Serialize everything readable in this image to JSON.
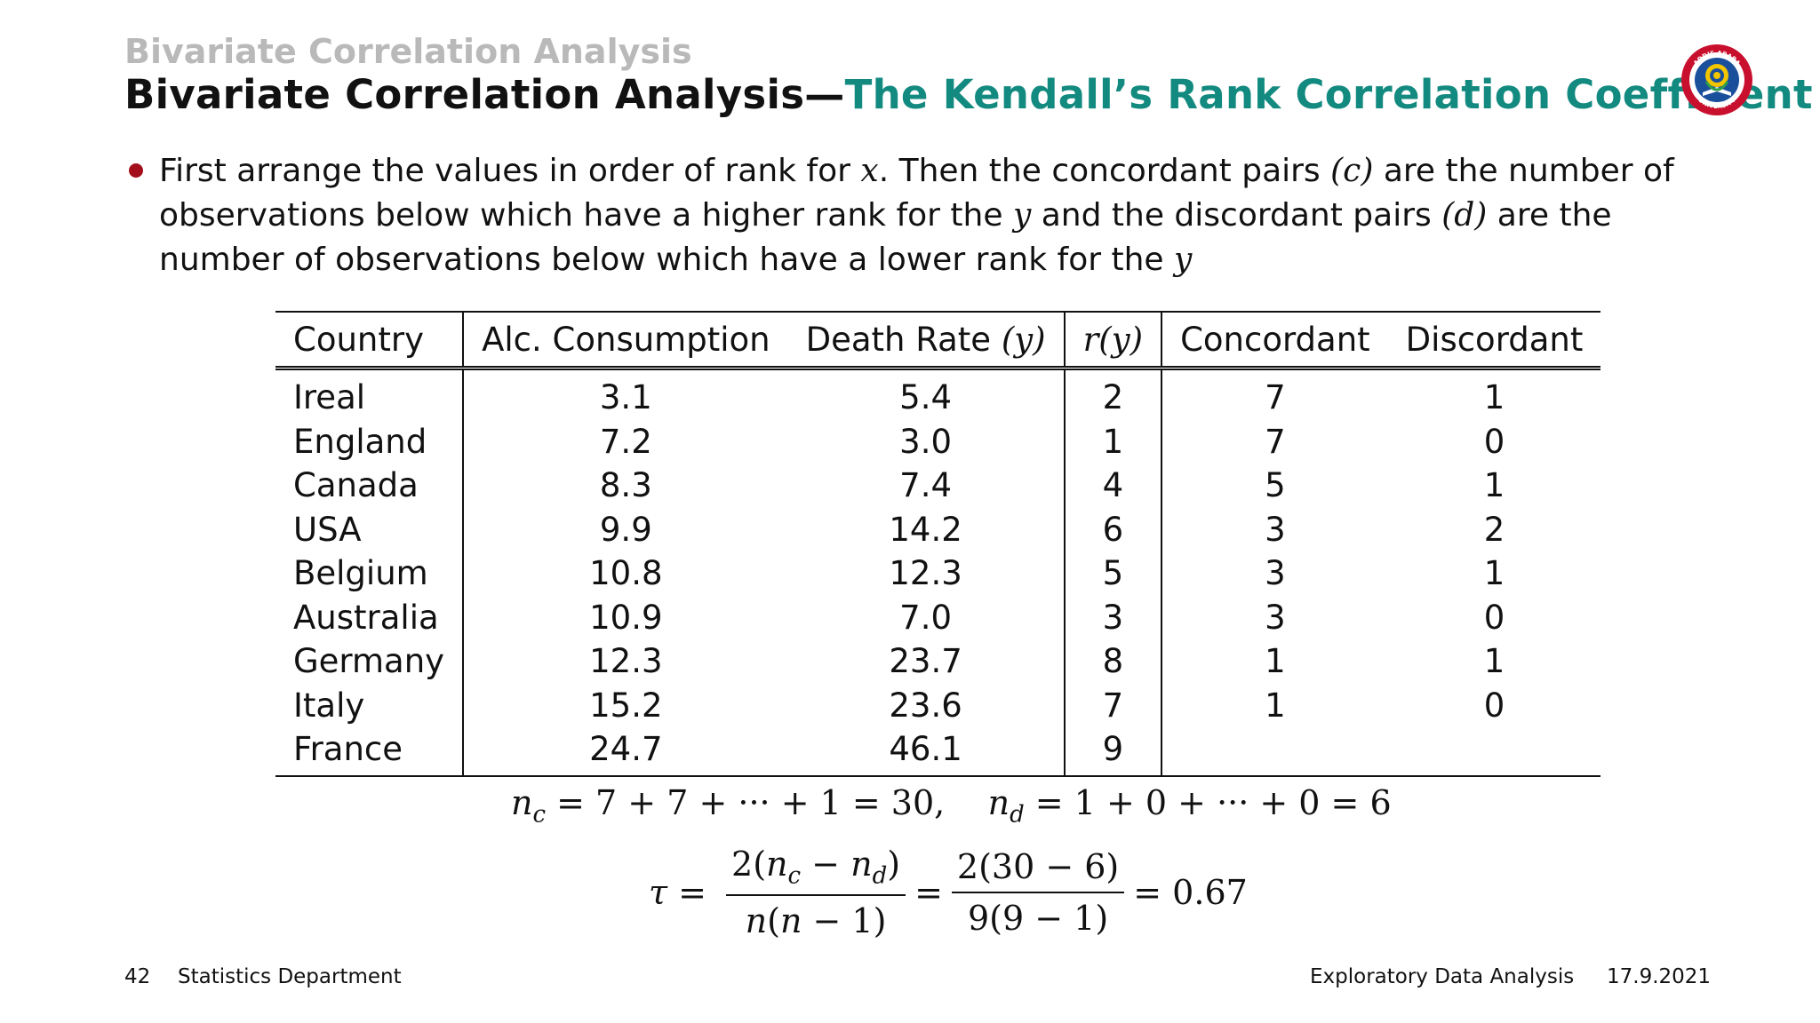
{
  "header": {
    "section": "Bivariate Correlation Analysis",
    "title_main": "Bivariate Correlation Analysis",
    "title_sep": "—",
    "title_accent": "The Kendall’s Rank Correlation Coefficient"
  },
  "bullet": {
    "t1": "First arrange the values in order of rank for ",
    "m1": "x",
    "t2": ". Then the concordant pairs ",
    "m2": "(c)",
    "t3": " are the number of observations below which have a higher rank for the ",
    "m3": "y",
    "t4": " and the discordant pairs ",
    "m4": "(d)",
    "t5": " are the number of observations below which have a lower rank for the ",
    "m5": "y"
  },
  "table": {
    "headers": {
      "country": "Country",
      "alc": "Alc. Consumption",
      "death": "Death Rate ",
      "death_var": "(y)",
      "rank": "r(y)",
      "concordant": "Concordant",
      "discordant": "Discordant"
    },
    "rows": [
      {
        "country": "Ireal",
        "alc": "3.1",
        "death": "5.4",
        "rank": "2",
        "concordant": "7",
        "discordant": "1"
      },
      {
        "country": "England",
        "alc": "7.2",
        "death": "3.0",
        "rank": "1",
        "concordant": "7",
        "discordant": "0"
      },
      {
        "country": "Canada",
        "alc": "8.3",
        "death": "7.4",
        "rank": "4",
        "concordant": "5",
        "discordant": "1"
      },
      {
        "country": "USA",
        "alc": "9.9",
        "death": "14.2",
        "rank": "6",
        "concordant": "3",
        "discordant": "2"
      },
      {
        "country": "Belgium",
        "alc": "10.8",
        "death": "12.3",
        "rank": "5",
        "concordant": "3",
        "discordant": "1"
      },
      {
        "country": "Australia",
        "alc": "10.9",
        "death": "7.0",
        "rank": "3",
        "concordant": "3",
        "discordant": "0"
      },
      {
        "country": "Germany",
        "alc": "12.3",
        "death": "23.7",
        "rank": "8",
        "concordant": "1",
        "discordant": "1"
      },
      {
        "country": "Italy",
        "alc": "15.2",
        "death": "23.6",
        "rank": "7",
        "concordant": "1",
        "discordant": "0"
      },
      {
        "country": "France",
        "alc": "24.7",
        "death": "46.1",
        "rank": "9",
        "concordant": "",
        "discordant": ""
      }
    ]
  },
  "formulas": {
    "nc_rhs": " = 7 + 7 + ··· + 1 = 30,",
    "nd_rhs": " = 1 + 0 + ··· + 0 = 6",
    "tau_symbol": "τ",
    "frac2_num": "2(30 − 6)",
    "frac2_den": "9(9 − 1)",
    "result": "= 0.67"
  },
  "footer": {
    "page": "42",
    "dept": "Statistics Department",
    "course": "Exploratory Data Analysis",
    "date": "17.9.2021"
  },
  "colors": {
    "accent": "#138a80",
    "bullet": "#a3101c",
    "section_gray": "#b9b9b9"
  },
  "logo": {
    "icon": "university-seal-icon",
    "text_top": "ADDIS ABABA",
    "text_bottom": "UNIVERSITY"
  }
}
